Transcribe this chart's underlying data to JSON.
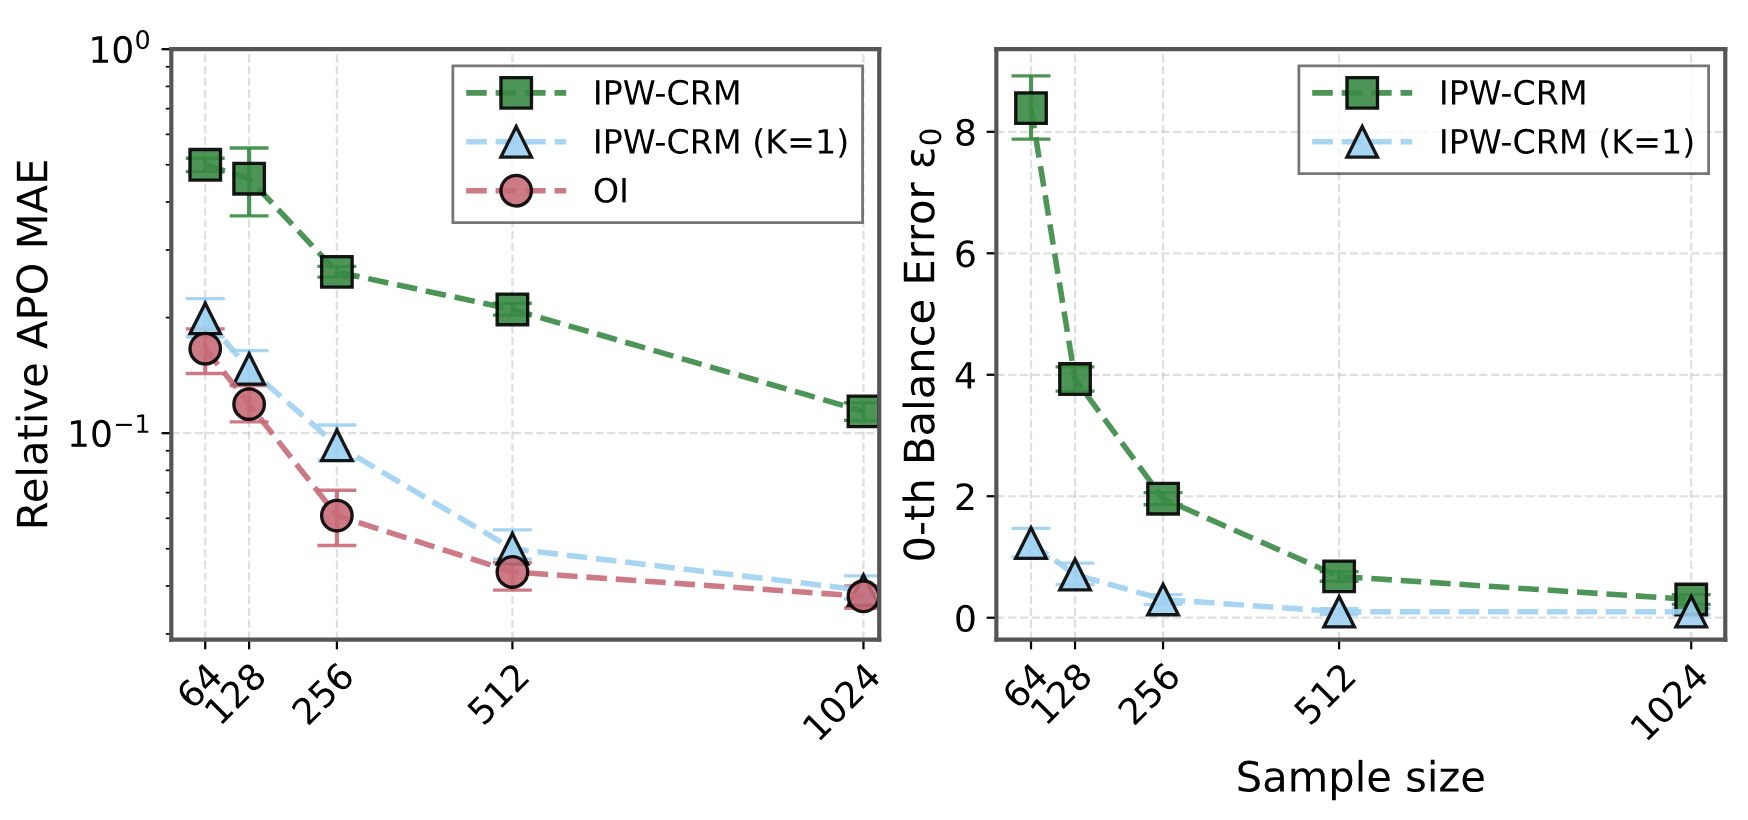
{
  "chart_data": [
    {
      "type": "line",
      "ylabel": "Relative APO MAE",
      "x": [
        64,
        128,
        256,
        512,
        1024
      ],
      "xlim": [
        14.5,
        1047
      ],
      "xticks": [
        64,
        128,
        256,
        512,
        1024
      ],
      "log": "y",
      "ylim": [
        0.029,
        1
      ],
      "yticks": [
        {
          "value": 1,
          "label": "10$^{0}$"
        },
        {
          "value": 0.1,
          "label": "10$^{−1}$"
        }
      ],
      "grid": true,
      "legend": "top right",
      "line_style": "dashed",
      "series": [
        {
          "name": "IPW-CRM",
          "color": "#3a8a45",
          "marker": "square",
          "values": [
            0.5,
            0.46,
            0.263,
            0.21,
            0.114
          ],
          "errors": [
            [
              0.48,
              0.52
            ],
            [
              0.368,
              0.553
            ],
            [
              0.255,
              0.272
            ],
            [
              0.203,
              0.218
            ],
            [
              0.108,
              0.12
            ]
          ]
        },
        {
          "name": "IPW-CRM (K=1)",
          "color": "#9fd0f0",
          "marker": "triangle",
          "values": [
            0.199,
            0.147,
            0.093,
            0.05,
            0.039
          ],
          "errors": [
            [
              0.178,
              0.224
            ],
            [
              0.133,
              0.164
            ],
            [
              0.085,
              0.105
            ],
            [
              0.047,
              0.056
            ],
            [
              0.037,
              0.0425
            ]
          ]
        },
        {
          "name": "OI",
          "color": "#c76b78",
          "marker": "circle",
          "values": [
            0.166,
            0.119,
            0.061,
            0.0435,
            0.0376
          ],
          "errors": [
            [
              0.143,
              0.187
            ],
            [
              0.107,
              0.133
            ],
            [
              0.051,
              0.071
            ],
            [
              0.039,
              0.046
            ],
            [
              0.035,
              0.04
            ]
          ]
        }
      ]
    },
    {
      "type": "line",
      "xlabel": "Sample size",
      "ylabel": "0-th Balance Error ε$_{0}$",
      "x": [
        64,
        128,
        256,
        512,
        1024
      ],
      "xlim": [
        13.6,
        1073.5
      ],
      "xticks": [
        64,
        128,
        256,
        512,
        1024
      ],
      "ylim": [
        -0.36,
        9.36
      ],
      "yticks": [
        0,
        2,
        4,
        6,
        8
      ],
      "grid": true,
      "legend": "top right",
      "line_style": "dashed",
      "series": [
        {
          "name": "IPW-CRM",
          "color": "#3a8a45",
          "marker": "square",
          "values": [
            8.39,
            3.93,
            1.96,
            0.68,
            0.3
          ],
          "errors": [
            [
              7.88,
              8.92
            ],
            [
              3.73,
              4.13
            ],
            [
              1.86,
              2.06
            ],
            [
              0.6,
              0.76
            ],
            [
              0.22,
              0.38
            ]
          ]
        },
        {
          "name": "IPW-CRM (K=1)",
          "color": "#9fd0f0",
          "marker": "triangle",
          "values": [
            1.23,
            0.71,
            0.3,
            0.1,
            0.1
          ],
          "errors": [
            [
              1.0,
              1.47
            ],
            [
              0.55,
              0.9
            ],
            [
              0.22,
              0.38
            ],
            [
              0.05,
              0.15
            ],
            [
              0.05,
              0.15
            ]
          ]
        }
      ]
    }
  ]
}
